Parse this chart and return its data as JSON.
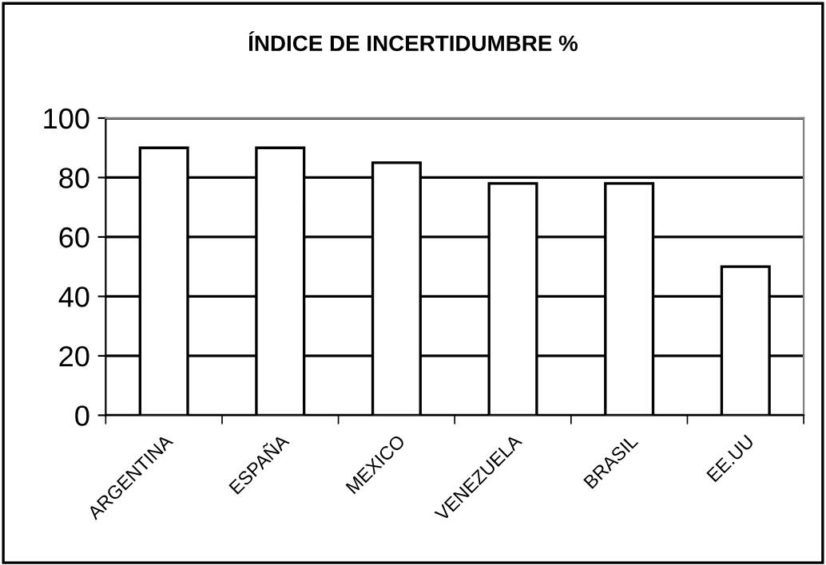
{
  "chart_data": {
    "type": "bar",
    "title": "ÍNDICE DE INCERTIDUMBRE %",
    "categories": [
      "ARGENTINA",
      "ESPAÑA",
      "MEXICO",
      "VENEZUELA",
      "BRASIL",
      "EE.UU"
    ],
    "values": [
      90,
      90,
      85,
      78,
      78,
      50
    ],
    "color": "#ffffff",
    "ylim": [
      0,
      100
    ],
    "yticks": [
      0,
      20,
      40,
      60,
      80,
      100
    ],
    "grid": "y",
    "legend": false
  }
}
